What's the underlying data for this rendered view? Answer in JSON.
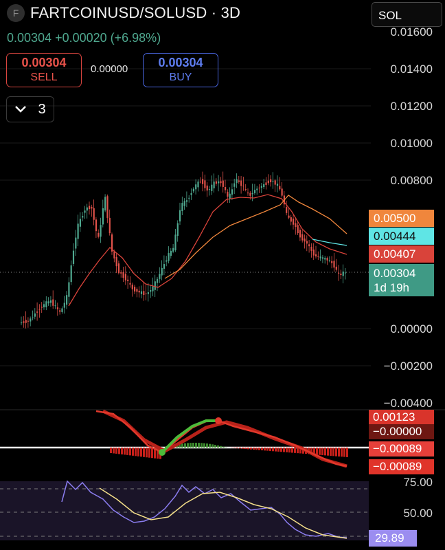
{
  "header": {
    "symbol_icon": "F",
    "title": "FARTCOINUSD/SOLUSD · 3D",
    "change_line": "0.00304 +0.00020 (+6.98%)"
  },
  "trade": {
    "sell_price": "0.00304",
    "sell_label": "SELL",
    "spread": "0.00000",
    "buy_price": "0.00304",
    "buy_label": "BUY"
  },
  "indicators": {
    "count": "3",
    "chevron_icon": "chevron-down-icon"
  },
  "currency": {
    "selected": "SOL"
  },
  "price_axis": {
    "labels": [
      "0.01600",
      "0.01400",
      "0.01200",
      "0.01000",
      "0.00800",
      "0.00000",
      "−0.00200",
      "−0.00400"
    ]
  },
  "price_tags": {
    "ma_long": "0.00500",
    "ma_cyan": "0.00444",
    "ma_short": "0.00407",
    "current": "0.00304",
    "countdown": "1d 19h"
  },
  "macd": {
    "labels": [
      "0.00123",
      "−0.00000",
      "−0.00089",
      "−0.00089"
    ]
  },
  "rsi": {
    "levels": [
      "75.00",
      "50.00"
    ],
    "value": "29.89"
  },
  "colors": {
    "up": "#4fa88f",
    "down": "#e0524a",
    "ma_long": "#f0863c",
    "ma_cyan": "#5fe5e5",
    "ma_short": "#d9433a",
    "rsi_line": "#8b7df0",
    "rsi_ma": "#f5e08a",
    "rsi_bg": "#1a1428"
  }
}
